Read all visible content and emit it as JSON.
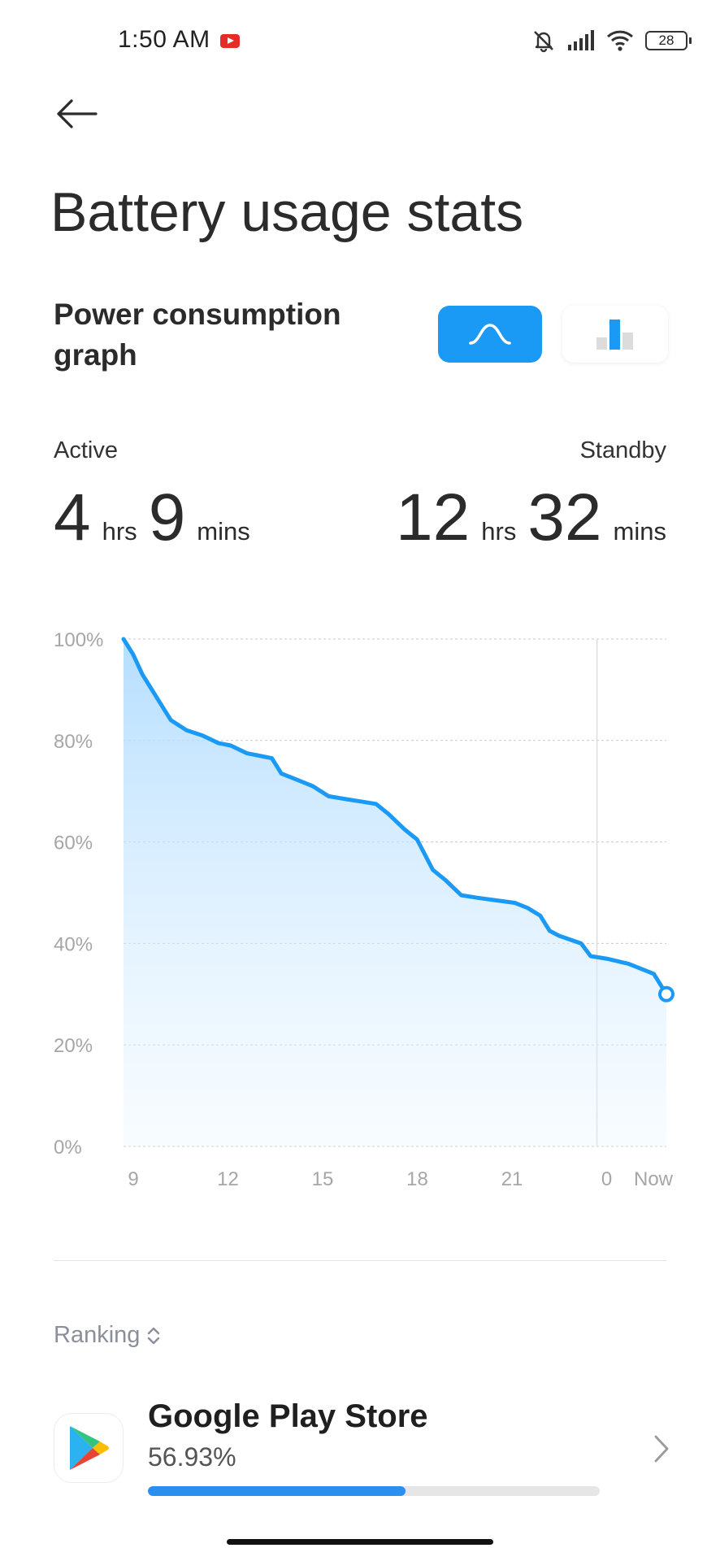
{
  "status_bar": {
    "time": "1:50 AM",
    "battery_level": "28",
    "icons": [
      "youtube-notification-icon",
      "silent-icon",
      "signal-icon",
      "wifi-icon",
      "battery-icon"
    ]
  },
  "header": {
    "title": "Battery usage stats"
  },
  "graph_section": {
    "title": "Power consumption graph",
    "view_toggle": {
      "selected": "line-graph",
      "options": [
        "line-graph-icon",
        "bar-graph-icon"
      ]
    }
  },
  "stats": {
    "active": {
      "label": "Active",
      "hours": "4",
      "hours_unit": "hrs",
      "minutes": "9",
      "minutes_unit": "mins"
    },
    "standby": {
      "label": "Standby",
      "hours": "12",
      "hours_unit": "hrs",
      "minutes": "32",
      "minutes_unit": "mins"
    }
  },
  "chart_data": {
    "type": "area",
    "y_ticks": [
      "100%",
      "80%",
      "60%",
      "40%",
      "20%",
      "0%"
    ],
    "x_ticks": [
      "9",
      "12",
      "15",
      "18",
      "21",
      "0",
      "Now"
    ],
    "ylim": [
      0,
      100
    ],
    "grid": true,
    "color": "#1a99f5",
    "series": [
      {
        "x": [
          9.0,
          9.3,
          9.6,
          10.0,
          10.3,
          10.5,
          11.0,
          11.5,
          12.0,
          12.4,
          12.9,
          13.3,
          13.7,
          14.0,
          14.6,
          15.0,
          15.5,
          16.0,
          16.5,
          17.0,
          17.4,
          17.9,
          18.3,
          18.8,
          19.2,
          19.7,
          20.2,
          20.8,
          21.4,
          21.8,
          22.2,
          22.5,
          22.8,
          23.5,
          23.8,
          24.3,
          25.0,
          25.8,
          26.2
        ],
        "y": [
          100,
          97,
          93,
          89,
          86,
          84,
          82,
          81,
          79.5,
          79,
          77.5,
          77,
          76.5,
          73.5,
          72,
          71,
          69,
          68.5,
          68,
          67.5,
          65.5,
          62.5,
          60.5,
          54.5,
          52.5,
          49.5,
          49,
          48.5,
          48,
          47,
          45.5,
          42.5,
          41.5,
          40,
          37.5,
          37,
          36,
          34,
          30
        ]
      }
    ]
  },
  "ranking": {
    "label": "Ranking",
    "items": [
      {
        "name": "Google Play Store",
        "percent_text": "56.93%",
        "percent": 56.93
      }
    ]
  }
}
